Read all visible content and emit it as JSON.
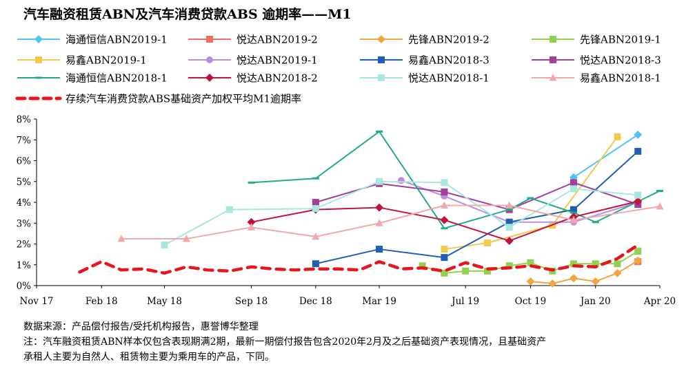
{
  "title": "汽车融资租赁ABN及汽车消费贷款ABS 逾期率——M1",
  "notes": {
    "source": "数据来源：产品偿付报告/受托机构报告，惠誉博华整理",
    "note_line1": "注：汽车融资租赁ABN样本仅包含表现期满2期，最新一期偿付报告包含2020年2月及之后基础资产表现情况，且基础资产",
    "note_line2": "承租人主要为自然人、租赁物主要为乘用车的产品，下同。"
  },
  "chart_data": {
    "type": "line",
    "title": "汽车融资租赁ABN及汽车消费贷款ABS 逾期率——M1",
    "xlabel": "",
    "ylabel": "",
    "x_ticks": [
      "Nov 17",
      "Feb 18",
      "May 18",
      "Sep 18",
      "Dec 18",
      "Mar 19",
      "Jul 19",
      "Oct 19",
      "Jan 20",
      "Apr 20"
    ],
    "x_tick_dates": [
      "2017-11-01",
      "2018-02-01",
      "2018-05-01",
      "2018-09-01",
      "2018-12-01",
      "2019-03-01",
      "2019-07-01",
      "2019-10-01",
      "2020-01-01",
      "2020-04-01"
    ],
    "xlim": [
      "2017-11-01",
      "2020-04-01"
    ],
    "ylim": [
      0,
      8
    ],
    "y_ticks": [
      "0%",
      "1%",
      "2%",
      "3%",
      "4%",
      "5%",
      "6%",
      "7%",
      "8%"
    ],
    "y_unit": "%",
    "grid": false,
    "legend_position": "top",
    "series": [
      {
        "name": "海通恒信ABN2019-1",
        "color": "#4fc3f7",
        "marker": "diamond",
        "dash": false,
        "points": [
          [
            "2019-12-01",
            5.2
          ],
          [
            "2020-03-01",
            7.25
          ]
        ]
      },
      {
        "name": "悦达ABN2019-2",
        "color": "#f07060",
        "marker": "square",
        "dash": false,
        "points": [
          [
            "2020-03-01",
            1.15
          ]
        ]
      },
      {
        "name": "先锋ABN2019-2",
        "color": "#f4a340",
        "marker": "diamond",
        "dash": false,
        "points": [
          [
            "2019-10-01",
            0.2
          ],
          [
            "2019-11-01",
            0.1
          ],
          [
            "2019-12-01",
            0.35
          ],
          [
            "2020-01-01",
            0.2
          ],
          [
            "2020-02-01",
            0.6
          ],
          [
            "2020-03-01",
            1.2
          ]
        ]
      },
      {
        "name": "先锋ABN2019-1",
        "color": "#92d050",
        "marker": "square",
        "dash": false,
        "points": [
          [
            "2019-05-01",
            0.95
          ],
          [
            "2019-06-01",
            0.6
          ],
          [
            "2019-07-01",
            0.7
          ],
          [
            "2019-08-01",
            0.7
          ],
          [
            "2019-09-01",
            0.95
          ],
          [
            "2019-10-01",
            1.1
          ],
          [
            "2019-11-01",
            0.7
          ],
          [
            "2019-12-01",
            1.05
          ],
          [
            "2020-01-01",
            1.05
          ],
          [
            "2020-02-01",
            1.05
          ],
          [
            "2020-03-01",
            1.65
          ]
        ]
      },
      {
        "name": "易鑫ABN2019-1",
        "color": "#f2c94c",
        "marker": "square",
        "dash": false,
        "points": [
          [
            "2019-06-01",
            1.75
          ],
          [
            "2019-08-01",
            2.05
          ],
          [
            "2019-11-01",
            2.9
          ],
          [
            "2020-02-01",
            7.15
          ]
        ]
      },
      {
        "name": "悦达ABN2019-1",
        "color": "#b98ee0",
        "marker": "circle",
        "dash": false,
        "points": [
          [
            "2019-04-01",
            5.05
          ],
          [
            "2019-06-01",
            4.3
          ],
          [
            "2019-09-01",
            3.05
          ],
          [
            "2019-12-01",
            3.05
          ],
          [
            "2020-03-01",
            4.0
          ]
        ]
      },
      {
        "name": "易鑫ABN2018-3",
        "color": "#1f5fb5",
        "marker": "square",
        "dash": false,
        "points": [
          [
            "2018-12-01",
            1.05
          ],
          [
            "2019-03-01",
            1.75
          ],
          [
            "2019-06-01",
            1.35
          ],
          [
            "2019-09-01",
            3.05
          ],
          [
            "2019-12-01",
            3.65
          ],
          [
            "2020-03-01",
            6.45
          ]
        ]
      },
      {
        "name": "悦达ABN2018-3",
        "color": "#a0409a",
        "marker": "square",
        "dash": false,
        "points": [
          [
            "2018-12-01",
            4.0
          ],
          [
            "2019-03-01",
            4.9
          ],
          [
            "2019-06-01",
            4.5
          ],
          [
            "2019-09-01",
            3.65
          ],
          [
            "2019-12-01",
            4.95
          ],
          [
            "2020-03-01",
            3.9
          ]
        ]
      },
      {
        "name": "海通恒信ABN2018-1",
        "color": "#22a88a",
        "marker": "dash",
        "dash": false,
        "points": [
          [
            "2018-09-01",
            4.95
          ],
          [
            "2018-12-01",
            5.15
          ],
          [
            "2019-03-01",
            7.4
          ],
          [
            "2019-06-01",
            2.75
          ],
          [
            "2019-09-01",
            3.65
          ],
          [
            "2019-10-01",
            4.2
          ],
          [
            "2019-12-01",
            3.5
          ],
          [
            "2020-01-01",
            3.05
          ],
          [
            "2020-04-01",
            4.55
          ]
        ]
      },
      {
        "name": "悦达ABN2018-2",
        "color": "#c0143c",
        "marker": "diamond",
        "dash": false,
        "points": [
          [
            "2018-09-01",
            3.05
          ],
          [
            "2018-12-01",
            3.65
          ],
          [
            "2019-03-01",
            3.75
          ],
          [
            "2019-06-01",
            3.15
          ],
          [
            "2019-09-01",
            2.15
          ],
          [
            "2019-12-01",
            3.3
          ],
          [
            "2020-03-01",
            4.05
          ]
        ]
      },
      {
        "name": "悦达ABN2018-1",
        "color": "#a8e6e0",
        "marker": "square",
        "dash": false,
        "points": [
          [
            "2018-05-01",
            1.95
          ],
          [
            "2018-08-01",
            3.65
          ],
          [
            "2018-12-01",
            3.7
          ],
          [
            "2019-03-01",
            5.0
          ],
          [
            "2019-06-01",
            4.95
          ],
          [
            "2019-09-01",
            2.8
          ],
          [
            "2019-12-01",
            4.65
          ],
          [
            "2020-03-01",
            4.35
          ]
        ]
      },
      {
        "name": "易鑫ABN2018-1",
        "color": "#f0a8a8",
        "marker": "triangle",
        "dash": false,
        "points": [
          [
            "2018-03-01",
            2.25
          ],
          [
            "2018-06-01",
            2.25
          ],
          [
            "2018-09-01",
            2.8
          ],
          [
            "2018-12-01",
            2.35
          ],
          [
            "2019-03-01",
            3.0
          ],
          [
            "2019-06-01",
            3.85
          ],
          [
            "2019-09-01",
            3.85
          ],
          [
            "2019-12-01",
            3.15
          ],
          [
            "2020-04-01",
            3.8
          ]
        ]
      },
      {
        "name": "存续汽车消费贷款ABS基础资产加权平均M1逾期率",
        "color": "#e8141e",
        "marker": "none",
        "dash": true,
        "points": [
          [
            "2018-01-01",
            0.65
          ],
          [
            "2018-02-01",
            1.15
          ],
          [
            "2018-03-01",
            0.75
          ],
          [
            "2018-04-01",
            0.8
          ],
          [
            "2018-05-01",
            0.6
          ],
          [
            "2018-06-01",
            0.9
          ],
          [
            "2018-07-01",
            0.75
          ],
          [
            "2018-08-01",
            0.7
          ],
          [
            "2018-09-01",
            0.9
          ],
          [
            "2018-10-01",
            0.8
          ],
          [
            "2018-11-01",
            0.75
          ],
          [
            "2018-12-01",
            0.8
          ],
          [
            "2019-01-01",
            0.8
          ],
          [
            "2019-02-01",
            0.75
          ],
          [
            "2019-03-01",
            1.15
          ],
          [
            "2019-04-01",
            0.8
          ],
          [
            "2019-05-01",
            0.85
          ],
          [
            "2019-06-01",
            0.7
          ],
          [
            "2019-07-01",
            1.1
          ],
          [
            "2019-08-01",
            0.8
          ],
          [
            "2019-09-01",
            0.85
          ],
          [
            "2019-10-01",
            0.95
          ],
          [
            "2019-11-01",
            0.75
          ],
          [
            "2019-12-01",
            0.95
          ],
          [
            "2020-01-01",
            0.9
          ],
          [
            "2020-02-01",
            1.3
          ],
          [
            "2020-03-01",
            1.95
          ]
        ]
      }
    ]
  }
}
